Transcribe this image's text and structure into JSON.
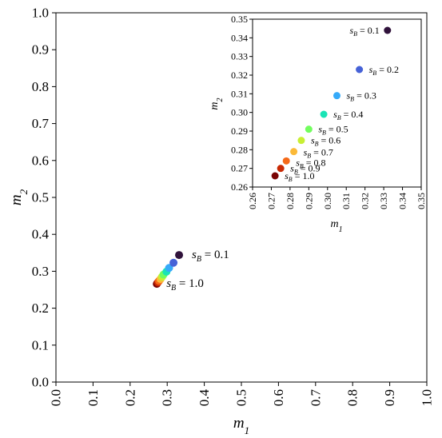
{
  "chart_data": [
    {
      "type": "scatter",
      "title": "",
      "xlabel": "m_1",
      "ylabel": "m_2",
      "xlim": [
        0.0,
        1.0
      ],
      "ylim": [
        0.0,
        1.0
      ],
      "xticks": [
        "0.0",
        "0.1",
        "0.2",
        "0.3",
        "0.4",
        "0.5",
        "0.6",
        "0.7",
        "0.8",
        "0.9",
        "1.0"
      ],
      "yticks": [
        "0.0",
        "0.1",
        "0.2",
        "0.3",
        "0.4",
        "0.5",
        "0.6",
        "0.7",
        "0.8",
        "0.9",
        "1.0"
      ],
      "grid": false,
      "series": [
        {
          "x": [
            0.332,
            0.317,
            0.305,
            0.298,
            0.29,
            0.286,
            0.282,
            0.278,
            0.275,
            0.272
          ],
          "y": [
            0.344,
            0.323,
            0.309,
            0.299,
            0.291,
            0.285,
            0.279,
            0.274,
            0.27,
            0.266
          ],
          "colors": [
            "#30123b",
            "#4662d7",
            "#36aaf9",
            "#1ae4b6",
            "#72fe5e",
            "#c8ef34",
            "#fbb938",
            "#f56918",
            "#c92903",
            "#7a0403"
          ]
        }
      ],
      "annotations": [
        {
          "index": 0,
          "prefix": "s",
          "sub": "B",
          "text": " = 0.1"
        },
        {
          "index": 9,
          "prefix": "s",
          "sub": "B",
          "text": " = 1.0"
        }
      ]
    },
    {
      "type": "scatter",
      "title": "",
      "xlabel": "m_1",
      "ylabel": "m_2",
      "xlim": [
        0.26,
        0.35
      ],
      "ylim": [
        0.26,
        0.35
      ],
      "xticks": [
        "0.26",
        "0.27",
        "0.28",
        "0.29",
        "0.30",
        "0.31",
        "0.32",
        "0.33",
        "0.34",
        "0.35"
      ],
      "yticks": [
        "0.26",
        "0.27",
        "0.28",
        "0.29",
        "0.30",
        "0.31",
        "0.32",
        "0.33",
        "0.34",
        "0.35"
      ],
      "grid": false,
      "series": [
        {
          "x": [
            0.332,
            0.317,
            0.305,
            0.298,
            0.29,
            0.286,
            0.282,
            0.278,
            0.275,
            0.272
          ],
          "y": [
            0.344,
            0.323,
            0.309,
            0.299,
            0.291,
            0.285,
            0.279,
            0.274,
            0.27,
            0.266
          ],
          "colors": [
            "#30123b",
            "#4662d7",
            "#36aaf9",
            "#1ae4b6",
            "#72fe5e",
            "#c8ef34",
            "#fbb938",
            "#f56918",
            "#c92903",
            "#7a0403"
          ]
        }
      ],
      "annotations": [
        {
          "index": 0,
          "prefix": "s",
          "sub": "B",
          "text": " = 0.1"
        },
        {
          "index": 1,
          "prefix": "s",
          "sub": "B",
          "text": " = 0.2"
        },
        {
          "index": 2,
          "prefix": "s",
          "sub": "B",
          "text": " = 0.3"
        },
        {
          "index": 3,
          "prefix": "s",
          "sub": "B",
          "text": " = 0.4"
        },
        {
          "index": 4,
          "prefix": "s",
          "sub": "B",
          "text": " = 0.5"
        },
        {
          "index": 5,
          "prefix": "s",
          "sub": "B",
          "text": " = 0.6"
        },
        {
          "index": 6,
          "prefix": "s",
          "sub": "B",
          "text": " = 0.7"
        },
        {
          "index": 7,
          "prefix": "s",
          "sub": "B",
          "text": " = 0.8"
        },
        {
          "index": 8,
          "prefix": "s",
          "sub": "B",
          "text": " = 0.9"
        },
        {
          "index": 9,
          "prefix": "s",
          "sub": "B",
          "text": " = 1.0"
        }
      ]
    }
  ]
}
